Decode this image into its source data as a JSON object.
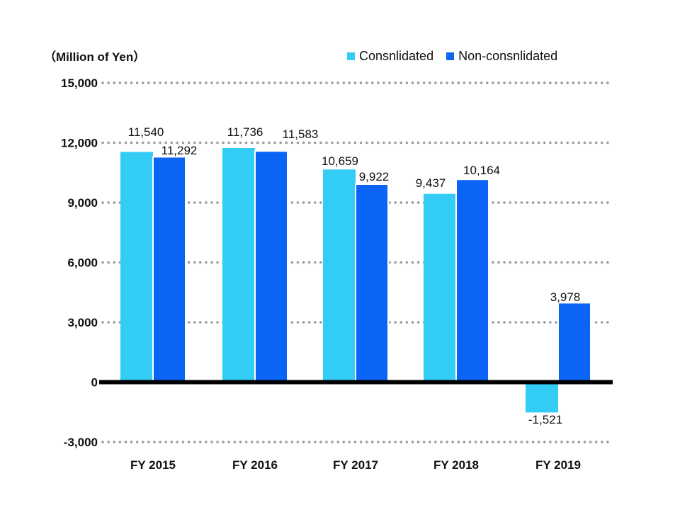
{
  "chart_data": {
    "type": "bar",
    "title": "",
    "unit_label": "（Million of Yen）",
    "xlabel": "",
    "ylabel": "",
    "ylim": [
      -3000,
      15000
    ],
    "yticks": [
      -3000,
      0,
      3000,
      6000,
      9000,
      12000,
      15000
    ],
    "ytick_labels": [
      "-3,000",
      "0",
      "3,000",
      "6,000",
      "9,000",
      "12,000",
      "15,000"
    ],
    "grid": true,
    "legend_position": "top-right",
    "categories": [
      "FY 2015",
      "FY 2016",
      "FY 2017",
      "FY 2018",
      "FY 2019"
    ],
    "series": [
      {
        "name": "Consnlidated",
        "color": "#33ccf5",
        "values": [
          11540,
          11736,
          10659,
          9437,
          -1521
        ],
        "labels": [
          "11,540",
          "11,736",
          "10,659",
          "9,437",
          "-1,521"
        ]
      },
      {
        "name": "Non-consnlidated",
        "color": "#0a64f5",
        "values": [
          11292,
          11583,
          9922,
          10164,
          3978
        ],
        "labels": [
          "11,292",
          "11,583",
          "9,922",
          "10,164",
          "3,978"
        ]
      }
    ]
  }
}
